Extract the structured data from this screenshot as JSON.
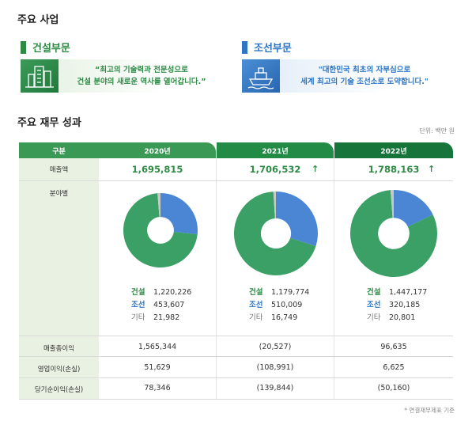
{
  "section1_title": "주요 사업",
  "businesses": [
    {
      "title": "건설부문",
      "quote_line1": "“최고의 기술력과 전문성으로",
      "quote_line2": "건설 분야의 새로운 역사를 열어갑니다.”",
      "icon": "buildings-icon",
      "color": "#2e8b45"
    },
    {
      "title": "조선부문",
      "quote_line1": "\"대한민국 최초의 자부심으로",
      "quote_line2": "세계 최고의 기술 조선소로 도약합니다.\"",
      "icon": "ship-icon",
      "color": "#2e76c4"
    }
  ],
  "section2_title": "주요 재무 성과",
  "unit": "단위: 백만 원",
  "table": {
    "row_labels": {
      "header": "구분",
      "sales": "매출액",
      "by_segment": "분야별",
      "gross_profit": "매출총이익",
      "operating_profit": "영업이익(손실)",
      "net_profit": "당기순이익(손실)"
    },
    "years": [
      {
        "year": "2020년",
        "header_color": "#3a9a55",
        "sales": "1,695,815",
        "sales_arrow": "",
        "segments": [
          {
            "name": "건설",
            "value": "1,220,226"
          },
          {
            "name": "조선",
            "value": "453,607"
          },
          {
            "name": "기타",
            "value": "21,982"
          }
        ],
        "gross_profit": "1,565,344",
        "operating_profit": "51,629",
        "net_profit": "78,346"
      },
      {
        "year": "2021년",
        "header_color": "#228b46",
        "sales": "1,706,532",
        "sales_arrow": "↑",
        "segments": [
          {
            "name": "건설",
            "value": "1,179,774"
          },
          {
            "name": "조선",
            "value": "510,009"
          },
          {
            "name": "기타",
            "value": "16,749"
          }
        ],
        "gross_profit": "(20,527)",
        "operating_profit": "(108,991)",
        "net_profit": "(139,844)"
      },
      {
        "year": "2022년",
        "header_color": "#17743a",
        "sales": "1,788,163",
        "sales_arrow": "↑",
        "segments": [
          {
            "name": "건설",
            "value": "1,447,177"
          },
          {
            "name": "조선",
            "value": "320,185"
          },
          {
            "name": "기타",
            "value": "20,801"
          }
        ],
        "gross_profit": "96,635",
        "operating_profit": "6,625",
        "net_profit": "(50,160)"
      }
    ]
  },
  "footnote": "* 연결재무제표 기준",
  "chart_data": [
    {
      "type": "pie",
      "categories": [
        "건설",
        "조선",
        "기타"
      ],
      "values": [
        1220226,
        453607,
        21982
      ],
      "colors": [
        "#3aa065",
        "#4a86d4",
        "#c8c8c8"
      ]
    },
    {
      "type": "pie",
      "categories": [
        "건설",
        "조선",
        "기타"
      ],
      "values": [
        1179774,
        510009,
        16749
      ],
      "colors": [
        "#3aa065",
        "#4a86d4",
        "#c8c8c8"
      ]
    },
    {
      "type": "pie",
      "categories": [
        "건설",
        "조선",
        "기타"
      ],
      "values": [
        1447177,
        320185,
        20801
      ],
      "colors": [
        "#3aa065",
        "#4a86d4",
        "#c8c8c8"
      ]
    }
  ]
}
